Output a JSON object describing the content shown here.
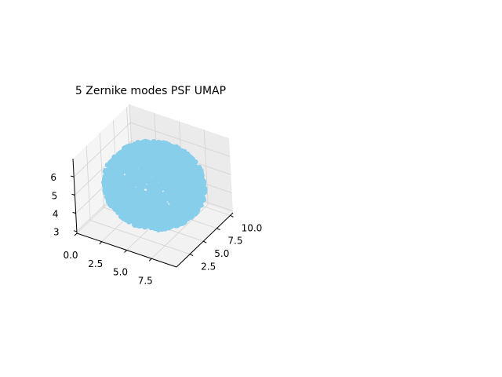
{
  "chart_data": {
    "type": "scatter",
    "projection": "3d",
    "title": "5 Zernike modes PSF UMAP",
    "xlabel": "",
    "ylabel": "",
    "zlabel": "",
    "x_ticks": [
      "0.0",
      "2.5",
      "5.0",
      "7.5"
    ],
    "y_ticks": [
      "2.5",
      "5.0",
      "7.5",
      "10.0"
    ],
    "z_ticks": [
      "3",
      "4",
      "5",
      "6"
    ],
    "xlim": [
      0,
      10
    ],
    "ylim": [
      0,
      10.5
    ],
    "zlim": [
      2.9,
      7
    ],
    "cloud_center": [
      5.0,
      5.5,
      4.9
    ],
    "cloud_radius": [
      4.5,
      4.6,
      1.9
    ],
    "grid": true,
    "point_color": "#87ceeb",
    "pane_color": "#f2f2f2",
    "grid_color": "#d3d3d3"
  }
}
